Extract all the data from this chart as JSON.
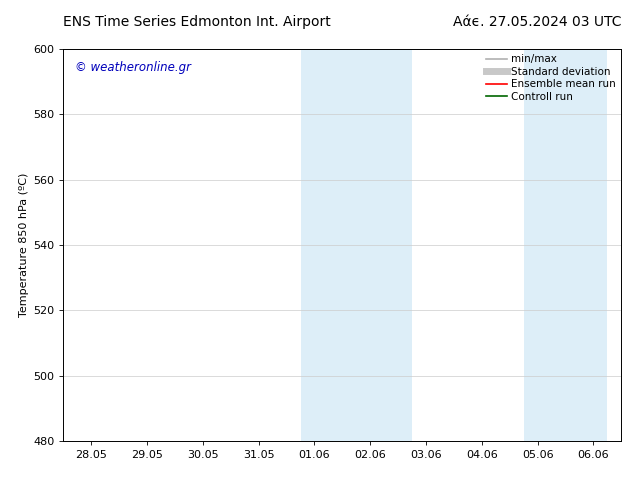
{
  "title_left": "ENS Time Series Edmonton Int. Airport",
  "title_right": "Αάϵ. 27.05.2024 03 UTC",
  "ylabel": "Temperature 850 hPa (ºC)",
  "ylim": [
    480,
    600
  ],
  "yticks": [
    480,
    500,
    520,
    540,
    560,
    580,
    600
  ],
  "xtick_labels": [
    "28.05",
    "29.05",
    "30.05",
    "31.05",
    "01.06",
    "02.06",
    "03.06",
    "04.06",
    "05.06",
    "06.06"
  ],
  "num_xticks": 10,
  "xlim": [
    -0.5,
    9.5
  ],
  "bg_color": "#ffffff",
  "plot_bg_color": "#ffffff",
  "shaded_regions": [
    {
      "xstart": 3.75,
      "xend": 5.75,
      "color": "#ddeef8"
    },
    {
      "xstart": 7.75,
      "xend": 9.25,
      "color": "#ddeef8"
    }
  ],
  "watermark_text": "© weatheronline.gr",
  "watermark_color": "#0000bb",
  "watermark_fontsize": 8.5,
  "legend_items": [
    {
      "label": "min/max",
      "color": "#b0b0b0",
      "lw": 1.2
    },
    {
      "label": "Standard deviation",
      "color": "#c8c8c8",
      "lw": 5
    },
    {
      "label": "Ensemble mean run",
      "color": "#ff0000",
      "lw": 1.2
    },
    {
      "label": "Controll run",
      "color": "#006600",
      "lw": 1.2
    }
  ],
  "grid_color": "#cccccc",
  "grid_lw": 0.5,
  "title_fontsize": 10,
  "tick_label_fontsize": 8,
  "ylabel_fontsize": 8,
  "legend_fontsize": 7.5
}
